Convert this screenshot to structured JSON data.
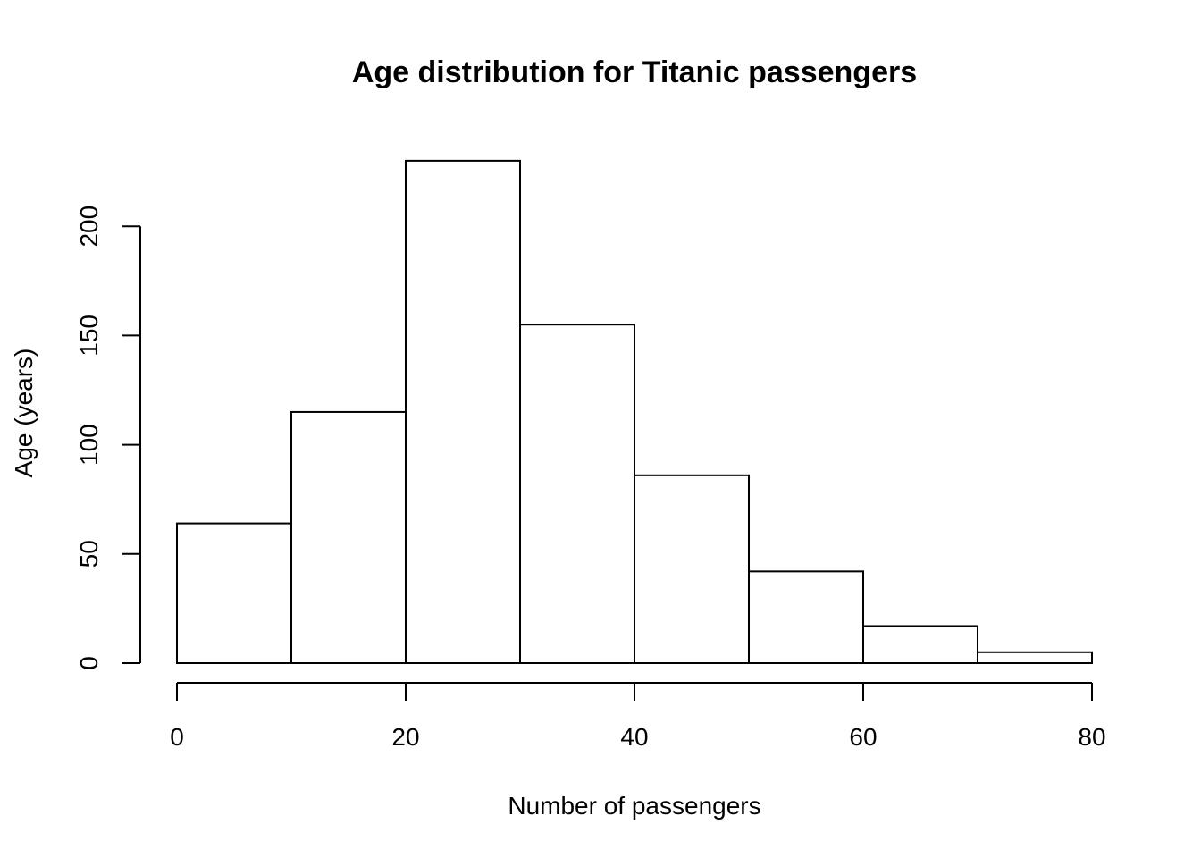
{
  "chart_data": {
    "type": "bar",
    "title": "Age distribution for Titanic passengers",
    "xlabel": "Number of passengers",
    "ylabel": "Age (years)",
    "bins": [
      {
        "x0": 0,
        "x1": 10,
        "value": 64
      },
      {
        "x0": 10,
        "x1": 20,
        "value": 115
      },
      {
        "x0": 20,
        "x1": 30,
        "value": 230
      },
      {
        "x0": 30,
        "x1": 40,
        "value": 155
      },
      {
        "x0": 40,
        "x1": 50,
        "value": 86
      },
      {
        "x0": 50,
        "x1": 60,
        "value": 42
      },
      {
        "x0": 60,
        "x1": 70,
        "value": 17
      },
      {
        "x0": 70,
        "x1": 80,
        "value": 5
      }
    ],
    "xlim": [
      0,
      80
    ],
    "ylim": [
      0,
      230
    ],
    "x_ticks": [
      0,
      20,
      40,
      60,
      80
    ],
    "y_ticks": [
      0,
      50,
      100,
      150,
      200
    ],
    "grid": false,
    "legend": "none",
    "colors": {
      "bar_fill": "#ffffff",
      "bar_stroke": "#000000"
    }
  }
}
